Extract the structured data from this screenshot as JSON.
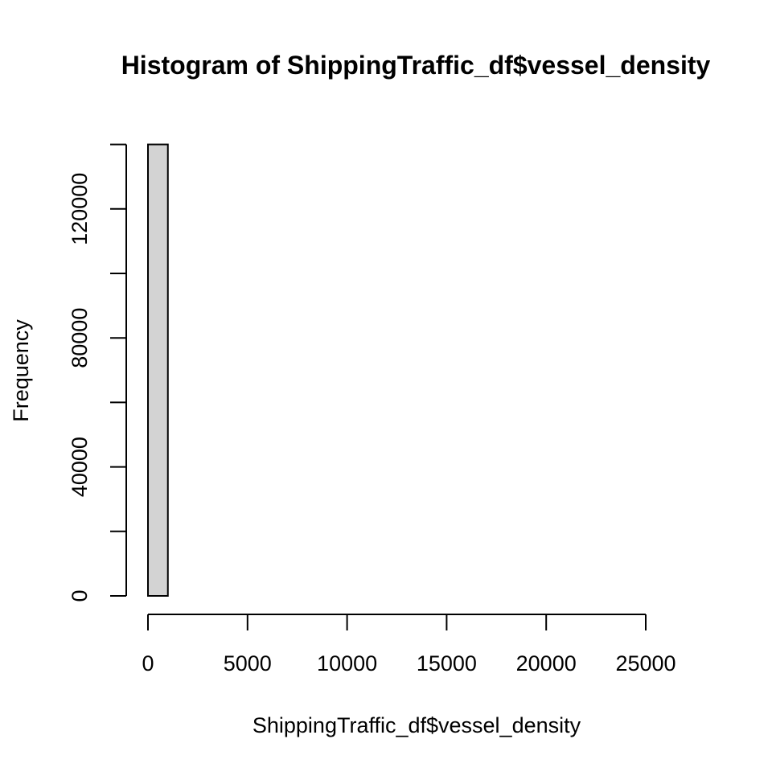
{
  "chart_data": {
    "type": "bar",
    "title": "Histogram of ShippingTraffic_df$vessel_density",
    "xlabel": "ShippingTraffic_df$vessel_density",
    "ylabel": "Frequency",
    "bins": [
      {
        "x0": 0,
        "x1": 1000,
        "count": 140000
      },
      {
        "x0": 1000,
        "x1": 2000,
        "count": 0
      },
      {
        "x0": 2000,
        "x1": 3000,
        "count": 0
      },
      {
        "x0": 3000,
        "x1": 4000,
        "count": 0
      },
      {
        "x0": 4000,
        "x1": 5000,
        "count": 0
      },
      {
        "x0": 5000,
        "x1": 6000,
        "count": 0
      },
      {
        "x0": 6000,
        "x1": 7000,
        "count": 0
      },
      {
        "x0": 7000,
        "x1": 8000,
        "count": 0
      },
      {
        "x0": 8000,
        "x1": 9000,
        "count": 0
      },
      {
        "x0": 9000,
        "x1": 10000,
        "count": 0
      },
      {
        "x0": 10000,
        "x1": 11000,
        "count": 0
      },
      {
        "x0": 11000,
        "x1": 12000,
        "count": 0
      },
      {
        "x0": 12000,
        "x1": 13000,
        "count": 0
      },
      {
        "x0": 13000,
        "x1": 14000,
        "count": 0
      },
      {
        "x0": 14000,
        "x1": 15000,
        "count": 0
      },
      {
        "x0": 15000,
        "x1": 16000,
        "count": 0
      },
      {
        "x0": 16000,
        "x1": 17000,
        "count": 0
      },
      {
        "x0": 17000,
        "x1": 18000,
        "count": 0
      },
      {
        "x0": 18000,
        "x1": 19000,
        "count": 0
      },
      {
        "x0": 19000,
        "x1": 20000,
        "count": 0
      },
      {
        "x0": 20000,
        "x1": 21000,
        "count": 0
      },
      {
        "x0": 21000,
        "x1": 22000,
        "count": 0
      },
      {
        "x0": 22000,
        "x1": 23000,
        "count": 0
      },
      {
        "x0": 23000,
        "x1": 24000,
        "count": 0
      },
      {
        "x0": 24000,
        "x1": 25000,
        "count": 0
      },
      {
        "x0": 25000,
        "x1": 26000,
        "count": 0
      },
      {
        "x0": 26000,
        "x1": 27000,
        "count": 0
      }
    ],
    "xticks": [
      "0",
      "5000",
      "10000",
      "15000",
      "20000",
      "25000"
    ],
    "xtick_values": [
      0,
      5000,
      10000,
      15000,
      20000,
      25000
    ],
    "yticks": [
      "0",
      "40000",
      "80000",
      "120000"
    ],
    "ytick_values": [
      0,
      40000,
      80000,
      120000
    ],
    "y_minor_tick_values": [
      20000,
      60000,
      100000,
      140000
    ],
    "xlim": [
      0,
      27000
    ],
    "ylim": [
      0,
      140000
    ],
    "bar_fill": "#d3d3d3",
    "bar_stroke": "#000000",
    "grid": false,
    "legend": "none"
  }
}
